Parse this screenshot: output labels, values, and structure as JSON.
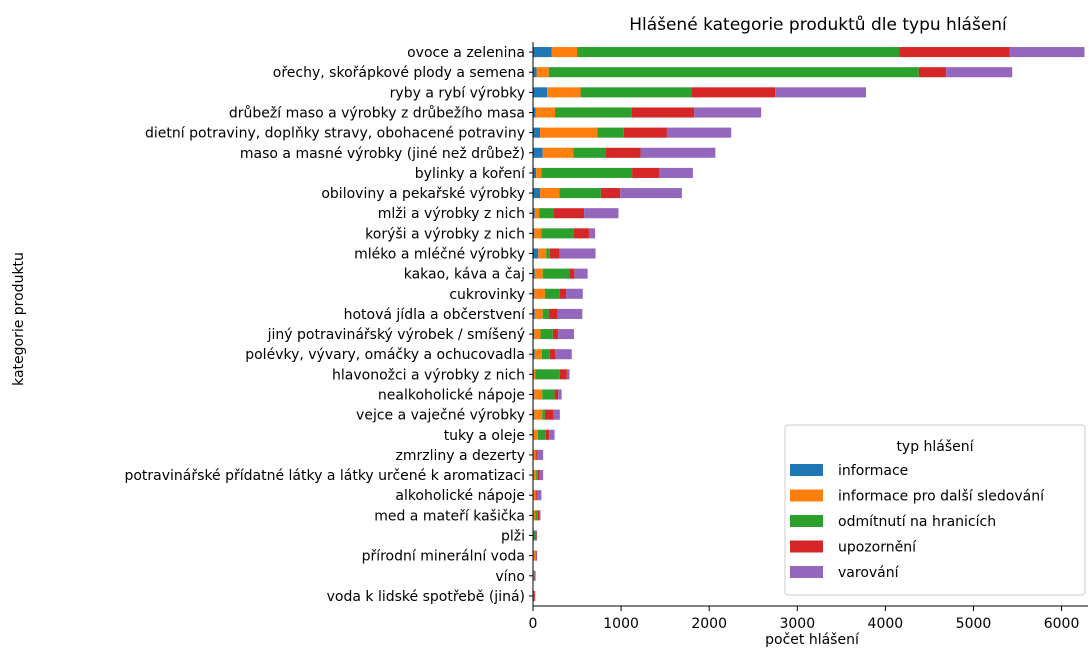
{
  "chart_data": {
    "type": "bar",
    "orientation": "horizontal",
    "stacked": true,
    "title": "Hlášené kategorie produktů dle typu hlášení",
    "xlabel": "počet hlášení",
    "ylabel": "kategorie produktu",
    "xlim": [
      0,
      6300
    ],
    "xticks": [
      0,
      1000,
      2000,
      3000,
      4000,
      5000,
      6000
    ],
    "grid": false,
    "legend": {
      "title": "typ hlášení",
      "placement": "lower right"
    },
    "categories": [
      "ovoce a zelenina",
      "ořechy, skořápkové plody a semena",
      "ryby a rybí výrobky",
      "drůbeží maso a výrobky z drůbežího masa",
      "dietní potraviny, doplňky stravy, obohacené potraviny",
      "maso a masné výrobky (jiné než drůbež)",
      "bylinky a koření",
      "obiloviny a pekařské výrobky",
      "mlži a výrobky z nich",
      "korýši a výrobky z nich",
      "mléko a mléčné výrobky",
      "kakao, káva a čaj",
      "cukrovinky",
      "hotová jídla a občerstvení",
      "jiný potravinářský výrobek / smíšený",
      "polévky, vývary, omáčky a ochucovadla",
      "hlavonožci a výrobky z nich",
      "nealkoholické nápoje",
      "vejce a vaječné výrobky",
      "tuky a oleje",
      "zmrzliny a dezerty",
      "potravinářské přídatné látky a látky určené k aromatizaci",
      "alkoholické nápoje",
      "med a mateří kašička",
      "plži",
      "přírodní minerální voda",
      "víno",
      "voda k lidské spotřebě (jiná)"
    ],
    "series": [
      {
        "name": "informace",
        "color": "#1f77b4",
        "values": [
          210,
          40,
          160,
          30,
          80,
          110,
          35,
          80,
          20,
          15,
          60,
          20,
          15,
          20,
          15,
          20,
          10,
          15,
          15,
          5,
          5,
          5,
          5,
          5,
          0,
          0,
          0,
          0
        ]
      },
      {
        "name": "informace pro další sledování",
        "color": "#ff7f0e",
        "values": [
          290,
          140,
          380,
          220,
          650,
          350,
          60,
          220,
          50,
          80,
          90,
          90,
          120,
          90,
          70,
          80,
          15,
          90,
          90,
          50,
          20,
          30,
          20,
          20,
          5,
          30,
          10,
          5
        ]
      },
      {
        "name": "odmítnutí na hranicích",
        "color": "#2ca02c",
        "values": [
          3660,
          4200,
          1260,
          870,
          300,
          360,
          1030,
          470,
          160,
          370,
          40,
          300,
          170,
          70,
          140,
          90,
          280,
          140,
          30,
          90,
          10,
          20,
          10,
          30,
          30,
          5,
          5,
          5
        ]
      },
      {
        "name": "upozornění",
        "color": "#d62728",
        "values": [
          1250,
          310,
          950,
          710,
          490,
          400,
          310,
          220,
          350,
          170,
          110,
          60,
          70,
          100,
          60,
          60,
          80,
          40,
          100,
          40,
          10,
          20,
          10,
          20,
          5,
          5,
          5,
          10
        ]
      },
      {
        "name": "varování",
        "color": "#9467bd",
        "values": [
          850,
          750,
          1030,
          760,
          730,
          850,
          380,
          700,
          390,
          70,
          410,
          150,
          190,
          280,
          180,
          190,
          30,
          40,
          70,
          60,
          70,
          40,
          50,
          10,
          5,
          5,
          10,
          5
        ]
      }
    ]
  }
}
